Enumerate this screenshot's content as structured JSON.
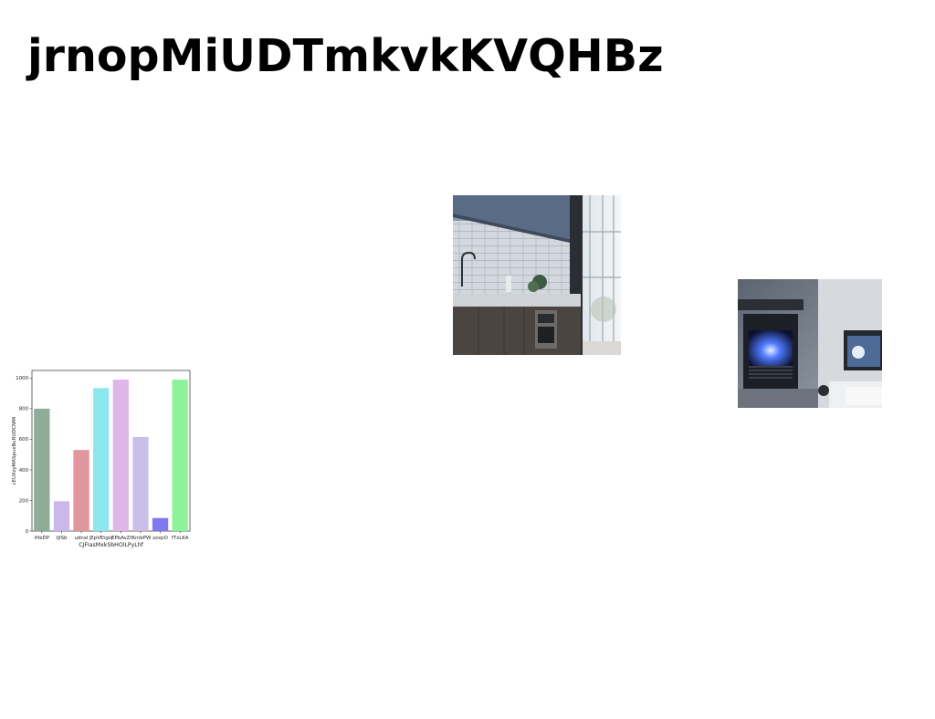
{
  "page": {
    "title": "jrnopMiUDTmkvkKVQHBz"
  },
  "images": [
    {
      "name": "kitchen-photo",
      "description": "kitchen"
    },
    {
      "name": "fireplace-photo",
      "description": "fireplace"
    }
  ],
  "chart_data": {
    "type": "bar",
    "title": "",
    "xlabel": "CJFIasMxkSbHOlLPyLhf",
    "ylabel": "cEUXzyMASpuxBuRUDCNMi",
    "categories": [
      "iHeDP",
      "tJlSb",
      "udnxl",
      "jEpVEtgla",
      "EPbAvZ",
      "fKmbPW",
      "zzxpO",
      "fTxLKA"
    ],
    "values": [
      800,
      195,
      530,
      935,
      990,
      615,
      85,
      990
    ],
    "colors": [
      "#8fac99",
      "#cbb7ec",
      "#e0969c",
      "#8ee7ef",
      "#e0b6e9",
      "#c9bfe8",
      "#8078ef",
      "#8df39a"
    ],
    "yticks": [
      0,
      200,
      400,
      600,
      800,
      1000
    ],
    "ylim": [
      0,
      1050
    ],
    "grid": false,
    "legend": false
  }
}
